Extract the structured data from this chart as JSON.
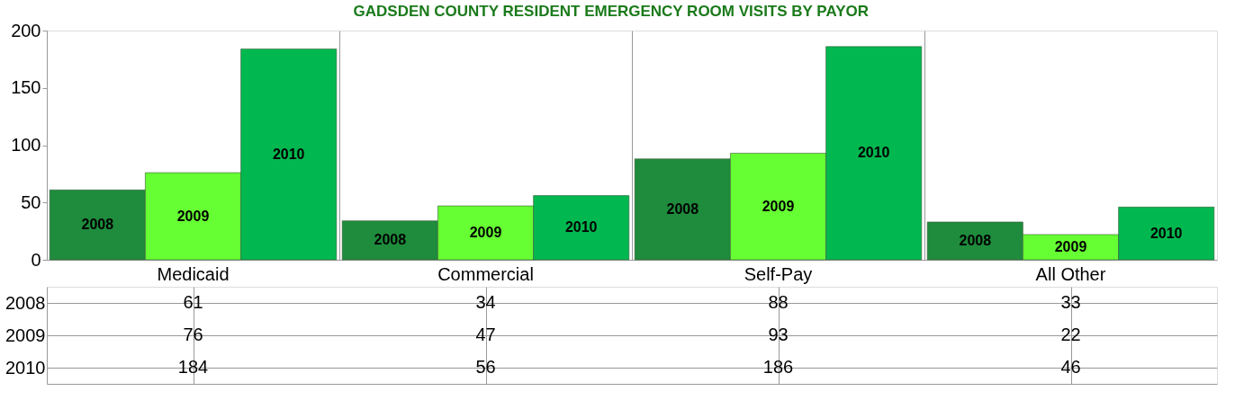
{
  "chart_data": {
    "type": "bar",
    "title": "GADSDEN COUNTY RESIDENT EMERGENCY ROOM VISITS BY PAYOR",
    "categories": [
      "Medicaid",
      "Commercial",
      "Self-Pay",
      "All Other"
    ],
    "series": [
      {
        "name": "2008",
        "color": "#1e8c3c",
        "values": [
          61,
          34,
          88,
          33
        ]
      },
      {
        "name": "2009",
        "color": "#66ff33",
        "values": [
          76,
          47,
          93,
          22
        ]
      },
      {
        "name": "2010",
        "color": "#00b84f",
        "values": [
          184,
          56,
          186,
          46
        ]
      }
    ],
    "ylim": [
      0,
      200
    ],
    "yticks": [
      0,
      50,
      100,
      150,
      200
    ],
    "grid": "x",
    "legend": false,
    "data_labels": true
  }
}
